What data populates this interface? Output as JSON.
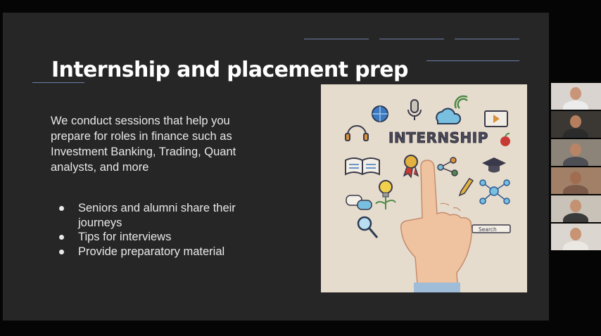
{
  "slide": {
    "title": "Internship and placement prep",
    "description": "We conduct sessions that help you prepare for roles in finance such as Investment Banking, Trading, Quant analysts, and more",
    "bullets": [
      "Seniors and alumni share their journeys",
      "Tips for interviews",
      "Provide preparatory material"
    ],
    "image": {
      "headline": "INTERNSHIP",
      "search_label": "Search"
    }
  },
  "participants": [
    {
      "bg": "#d9d4cf",
      "skin": "#c99578",
      "shirt": "#ececec"
    },
    {
      "bg": "#3b3833",
      "skin": "#b57f5f",
      "shirt": "#2b2b2b"
    },
    {
      "bg": "#8c8478",
      "skin": "#b98466",
      "shirt": "#4e4e55"
    },
    {
      "bg": "#a18067",
      "skin": "#a06d50",
      "shirt": "#7c5a4a"
    },
    {
      "bg": "#c8c2b8",
      "skin": "#c49272",
      "shirt": "#3a3a3a"
    },
    {
      "bg": "#dcd6d0",
      "skin": "#c89474",
      "shirt": "#ebe7e2"
    }
  ],
  "colors": {
    "slide_bg": "#262626",
    "accent_line": "#6f7ea8",
    "text": "#e8e8e8"
  }
}
